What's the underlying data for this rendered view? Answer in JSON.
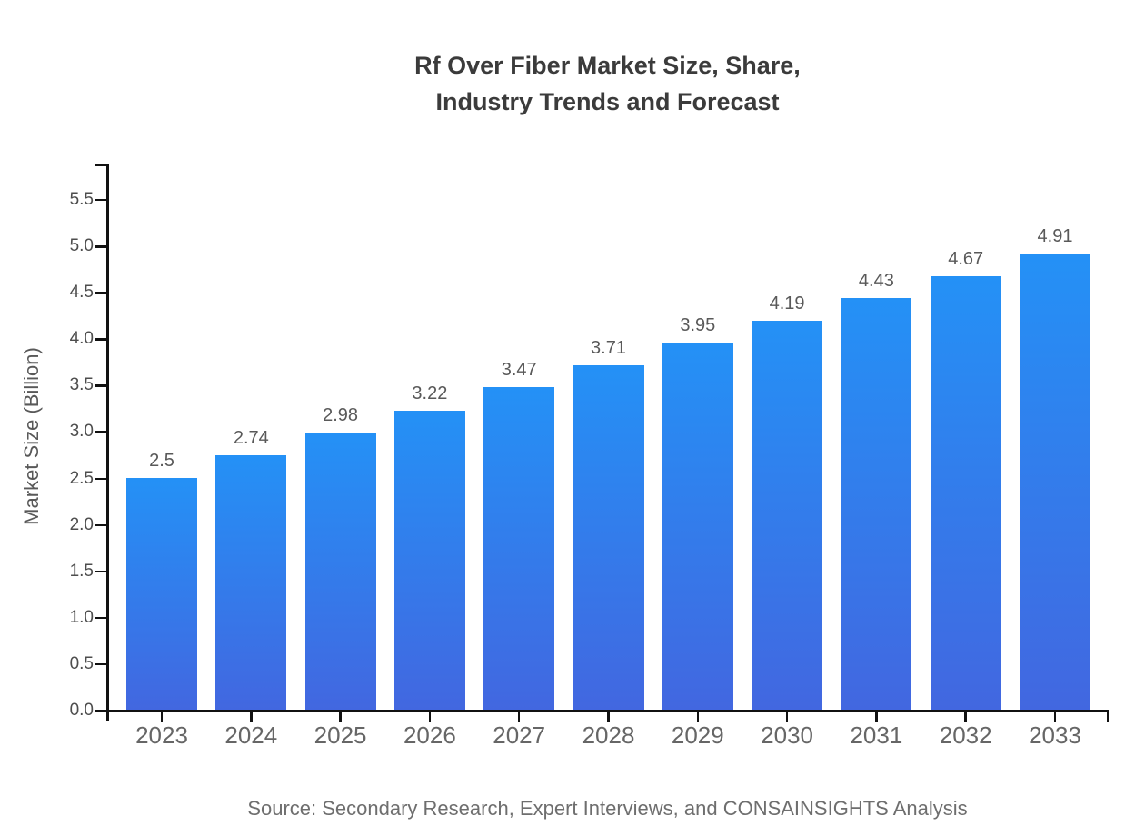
{
  "title": {
    "line1": "Rf Over Fiber Market Size, Share,",
    "line2": "Industry Trends and Forecast"
  },
  "source_caption": "Source: Secondary Research, Expert Interviews, and CONSAINSIGHTS Analysis",
  "chart_data": {
    "type": "bar",
    "title": "Rf Over Fiber Market Size, Share, Industry Trends and Forecast",
    "xlabel": "",
    "ylabel": "Market Size (Billion)",
    "categories": [
      "2023",
      "2024",
      "2025",
      "2026",
      "2027",
      "2028",
      "2029",
      "2030",
      "2031",
      "2032",
      "2033"
    ],
    "values": [
      2.5,
      2.74,
      2.98,
      3.22,
      3.47,
      3.71,
      3.95,
      4.19,
      4.43,
      4.67,
      4.91
    ],
    "bar_labels": [
      "2.5",
      "2.74",
      "2.98",
      "3.22",
      "3.47",
      "3.71",
      "3.95",
      "4.19",
      "4.43",
      "4.67",
      "4.91"
    ],
    "ylim": [
      0,
      5.5
    ],
    "ytick_step": 0.5,
    "ytick_decimals": 1,
    "grid": false,
    "legend_position": "none",
    "colors": {
      "bar_gradient_top": "#2491F6",
      "bar_gradient_bottom": "#4267E0",
      "axis": "#111111",
      "title_text": "#3b3b3b",
      "ytick_text": "#4d4d4d",
      "xtick_text": "#666666",
      "value_text": "#595959",
      "source_text": "#6e6e6e",
      "background": "#ffffff"
    }
  }
}
